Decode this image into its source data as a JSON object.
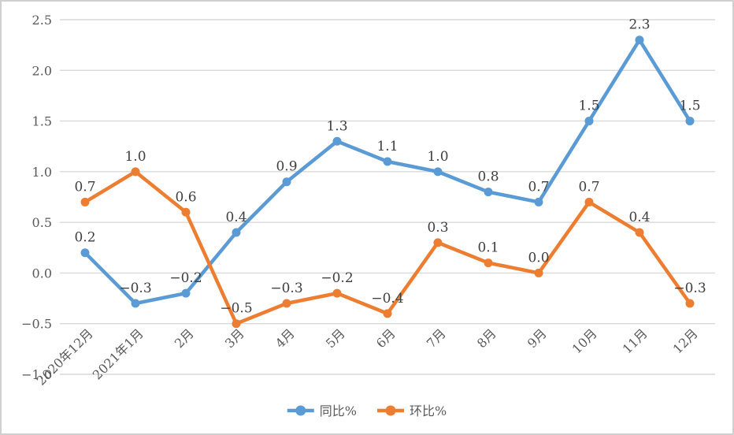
{
  "chart_data": {
    "type": "line",
    "categories": [
      "2020年12月",
      "2021年1月",
      "2月",
      "3月",
      "4月",
      "5月",
      "6月",
      "7月",
      "8月",
      "9月",
      "10月",
      "11月",
      "12月"
    ],
    "series": [
      {
        "name": "同比%",
        "color": "#5B9BD5",
        "values": [
          0.2,
          -0.3,
          -0.2,
          0.4,
          0.9,
          1.3,
          1.1,
          1.0,
          0.8,
          0.7,
          1.5,
          2.3,
          1.5
        ]
      },
      {
        "name": "环比%",
        "color": "#ED7D31",
        "values": [
          0.7,
          1.0,
          0.6,
          -0.5,
          -0.3,
          -0.2,
          -0.4,
          0.3,
          0.1,
          0.0,
          0.7,
          0.4,
          -0.3
        ]
      }
    ],
    "y_ticks": [
      "2.5",
      "2.0",
      "1.5",
      "1.0",
      "0.5",
      "0.0",
      "-0.5",
      "-1.0"
    ],
    "ylim": [
      -1.0,
      2.5
    ],
    "title": "",
    "xlabel": "",
    "ylabel": "",
    "grid": true,
    "data_labels": true,
    "legend_position": "bottom",
    "colors": {
      "gridline": "#D9D9D9",
      "tick_text": "#595959",
      "data_label_text": "#3f3f3f",
      "frame_border": "#d0d0d0",
      "background": "#ffffff"
    }
  }
}
